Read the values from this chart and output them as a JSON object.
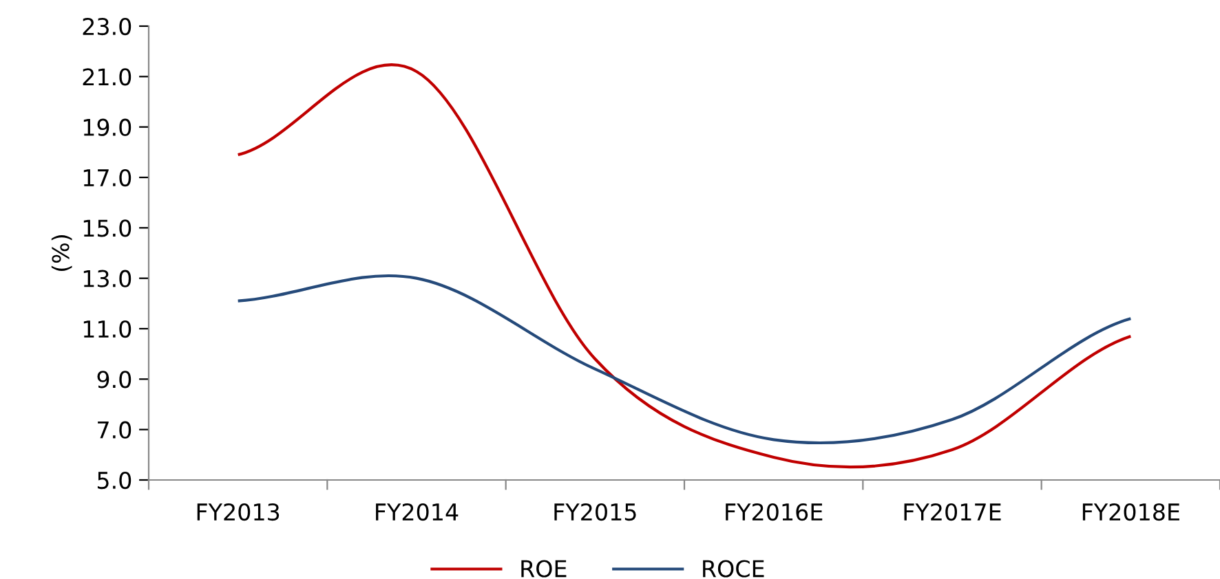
{
  "chart_data": {
    "type": "line",
    "ylabel": "(%)",
    "categories": [
      "FY2013",
      "FY2014",
      "FY2015",
      "FY2016E",
      "FY2017E",
      "FY2018E"
    ],
    "series": [
      {
        "name": "ROE",
        "color": "#c00000",
        "values": [
          17.9,
          21.2,
          9.8,
          5.9,
          6.2,
          10.7
        ]
      },
      {
        "name": "ROCE",
        "color": "#254a7a",
        "values": [
          12.1,
          13.0,
          9.4,
          6.6,
          7.4,
          11.4
        ]
      }
    ],
    "ylim": [
      5.0,
      23.0
    ],
    "yticks": [
      {
        "value": 5,
        "label": "5.0"
      },
      {
        "value": 7,
        "label": "7.0"
      },
      {
        "value": 9,
        "label": "9.0"
      },
      {
        "value": 11,
        "label": "11.0"
      },
      {
        "value": 13,
        "label": "13.0"
      },
      {
        "value": 15,
        "label": "15.0"
      },
      {
        "value": 17,
        "label": "17.0"
      },
      {
        "value": 19,
        "label": "19.0"
      },
      {
        "value": 21,
        "label": "21.0"
      },
      {
        "value": 23,
        "label": "23.0"
      }
    ],
    "grid": false,
    "legend": "bottom",
    "marker": "none",
    "line_style": "solid"
  }
}
